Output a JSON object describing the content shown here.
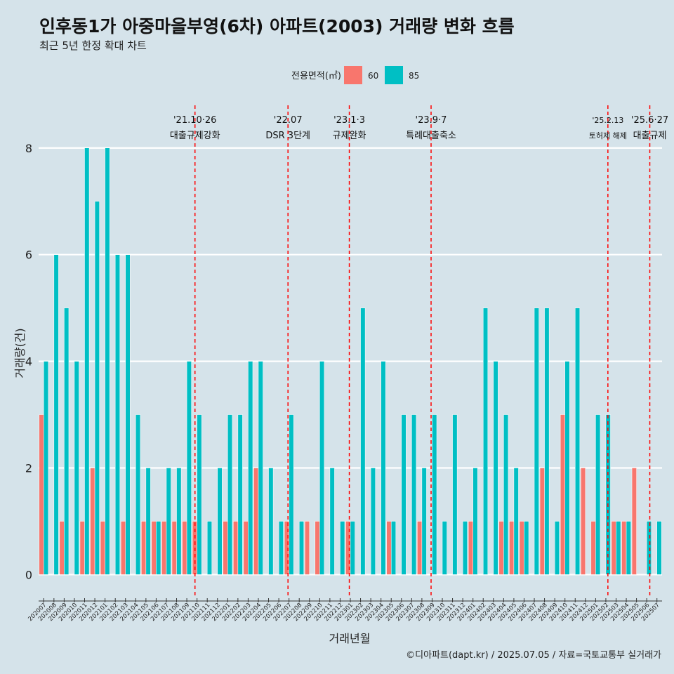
{
  "title": "인후동1가 아중마을부영(6차) 아파트(2003) 거래량 변화 흐름",
  "subtitle": "최근 5년 한정 확대 차트",
  "caption": "©디아파트(dapt.kr) / 2025.07.05 / 자료=국토교통부 실거래가",
  "colors": {
    "60": "#f8766d",
    "85": "#00bfc4",
    "background": "#d5e3ea",
    "event_line": "#ff0000"
  },
  "chart_data": {
    "type": "bar",
    "xlabel": "거래년월",
    "ylabel": "거래량(건)",
    "ylim": [
      -0.35,
      8.8
    ],
    "yticks": [
      0,
      2,
      4,
      6,
      8
    ],
    "legend": {
      "title": "전용면적(㎡)",
      "position": "top",
      "entries": [
        "60",
        "85"
      ]
    },
    "categories": [
      "202007",
      "202008",
      "202009",
      "202010",
      "202011",
      "202012",
      "202101",
      "202102",
      "202103",
      "202104",
      "202105",
      "202106",
      "202107",
      "202108",
      "202109",
      "202110",
      "202111",
      "202112",
      "202201",
      "202202",
      "202203",
      "202204",
      "202205",
      "202206",
      "202207",
      "202208",
      "202209",
      "202210",
      "202211",
      "202212",
      "202301",
      "202302",
      "202303",
      "202304",
      "202305",
      "202306",
      "202307",
      "202308",
      "202309",
      "202310",
      "202311",
      "202312",
      "202401",
      "202402",
      "202403",
      "202404",
      "202405",
      "202406",
      "202407",
      "202408",
      "202409",
      "202410",
      "202411",
      "202412",
      "202501",
      "202502",
      "202503",
      "202504",
      "202505",
      "202506",
      "202507"
    ],
    "series": [
      {
        "name": "60",
        "values": [
          3,
          0,
          1,
          0,
          1,
          2,
          1,
          0,
          1,
          0,
          1,
          1,
          1,
          1,
          1,
          1,
          0,
          0,
          1,
          1,
          1,
          2,
          0,
          0,
          1,
          0,
          1,
          1,
          0,
          0,
          1,
          0,
          0,
          0,
          1,
          0,
          0,
          1,
          0,
          0,
          0,
          0,
          1,
          0,
          0,
          1,
          1,
          1,
          0,
          2,
          0,
          3,
          0,
          2,
          1,
          0,
          1,
          1,
          2,
          0,
          0
        ]
      },
      {
        "name": "85",
        "values": [
          4,
          6,
          5,
          4,
          8,
          7,
          8,
          6,
          6,
          3,
          2,
          1,
          2,
          2,
          4,
          3,
          1,
          2,
          3,
          3,
          4,
          4,
          2,
          1,
          3,
          1,
          0,
          4,
          2,
          1,
          1,
          5,
          2,
          4,
          1,
          3,
          3,
          2,
          3,
          1,
          3,
          1,
          2,
          5,
          4,
          3,
          2,
          1,
          5,
          5,
          1,
          4,
          5,
          0,
          3,
          3,
          1,
          1,
          0,
          1,
          1
        ]
      }
    ],
    "events": [
      {
        "date_label": "'21.10·26",
        "desc": "대출규제강화",
        "x": 15.3,
        "size": "normal"
      },
      {
        "date_label": "'22.07",
        "desc": "DSR 3단계",
        "x": 24.4,
        "size": "normal"
      },
      {
        "date_label": "'23.1·3",
        "desc": "규제완화",
        "x": 30.4,
        "size": "normal"
      },
      {
        "date_label": "'23.9·7",
        "desc": "특례대출축소",
        "x": 38.4,
        "size": "normal"
      },
      {
        "date_label": "'25.2.13",
        "desc": "토허제 해제",
        "x": 55.7,
        "size": "small"
      },
      {
        "date_label": "'25.6·27",
        "desc": "대출규제",
        "x": 59.8,
        "size": "normal"
      }
    ]
  }
}
